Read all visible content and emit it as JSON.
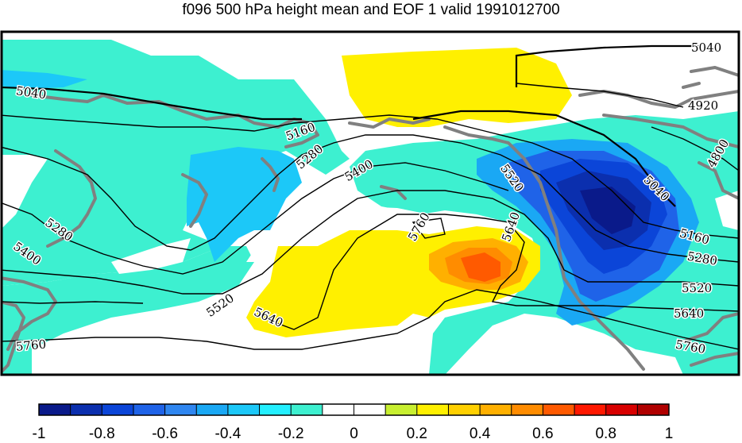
{
  "title": "f096 500 hPa height mean and EOF 1 valid 1991012700",
  "contour_labels": [
    "5040",
    "4920",
    "4800",
    "5040",
    "5160",
    "5280",
    "5400",
    "5520",
    "5640",
    "5760",
    "5160",
    "5280",
    "5520",
    "5640",
    "5760",
    "5280",
    "5400",
    "5520",
    "5640",
    "5760",
    "5040"
  ],
  "colorbar": {
    "tick_labels": [
      "-1",
      "-0.8",
      "-0.6",
      "-0.4",
      "-0.2",
      "0",
      "0.2",
      "0.4",
      "0.6",
      "0.8",
      "1"
    ],
    "min": -1,
    "max": 1,
    "colors": [
      "#0a1a8a",
      "#0b2fae",
      "#0b45d8",
      "#1f63e8",
      "#2f86f0",
      "#1aa8f4",
      "#1cc8f8",
      "#23efff",
      "#3df0d0",
      "#ffffff",
      "#ffffff",
      "#c8ef30",
      "#fff000",
      "#ffd000",
      "#ffb000",
      "#ff8c00",
      "#ff5a00",
      "#ff1800",
      "#d80000",
      "#b00000"
    ]
  },
  "colors": {
    "coastline": "#808080",
    "contour": "#000000",
    "frame": "#000000"
  }
}
